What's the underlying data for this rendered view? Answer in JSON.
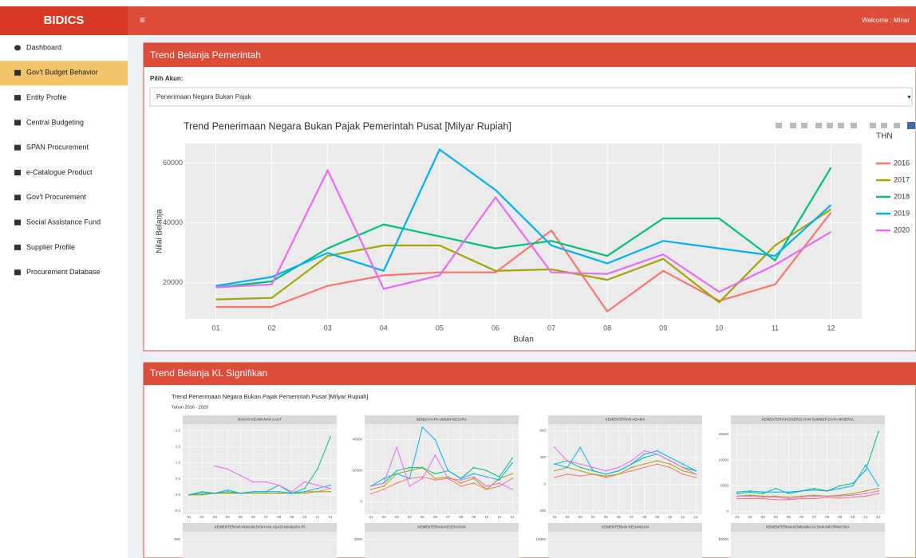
{
  "header": {
    "brand": "BIDICS",
    "welcome": "Welcome : Minar"
  },
  "sidebar": [
    "Dashboard",
    "Gov't Budget Behavior",
    "Entity Profile",
    "Central Budgeting",
    "SPAN Procurement",
    "e-Catalogue Product",
    "Gov't Procurement",
    "Social Assistance Fund",
    "Supplier Profile",
    "Procurement Database"
  ],
  "sidebar_active": 1,
  "panel1": {
    "title": "Trend Belanja Pemerintah",
    "select_label": "Pilih Akun:",
    "select_value": "Penerimaan Negara Bukan Pajak"
  },
  "chart_data": {
    "type": "line",
    "title": "Trend  Penerimaan Negara Bukan Pajak Pemerintah Pusat [Milyar Rupiah]",
    "x_label": "Bulan",
    "y_label": "Nilai Belanja",
    "legend_title": "THN",
    "legend": "right",
    "grid": true,
    "categories": [
      "01",
      "02",
      "03",
      "04",
      "05",
      "06",
      "07",
      "08",
      "09",
      "10",
      "11",
      "12"
    ],
    "ylim": [
      8000,
      66500
    ],
    "yticks": [
      20000,
      40000,
      60000
    ],
    "series": [
      {
        "name": "2016",
        "color": "#f8766d",
        "values": [
          12000,
          12000,
          19000,
          22500,
          23500,
          23500,
          37500,
          10500,
          24000,
          14000,
          19500,
          43500
        ]
      },
      {
        "name": "2017",
        "color": "#a3a500",
        "values": [
          14500,
          15000,
          29000,
          32500,
          32500,
          24000,
          24500,
          21000,
          28000,
          13500,
          32500,
          44500
        ]
      },
      {
        "name": "2018",
        "color": "#00bf7d",
        "values": [
          18500,
          20500,
          31500,
          39500,
          35500,
          31500,
          34000,
          29000,
          41500,
          41500,
          27500,
          58500
        ]
      },
      {
        "name": "2019",
        "color": "#00b0f6",
        "values": [
          19000,
          22000,
          30000,
          24000,
          64500,
          51000,
          32500,
          26500,
          34000,
          31500,
          29000,
          46000
        ]
      },
      {
        "name": "2020",
        "color": "#e76bf3",
        "values": [
          18500,
          19500,
          57500,
          18000,
          22500,
          48500,
          23500,
          23000,
          29500,
          17000,
          26000,
          37000
        ]
      }
    ]
  },
  "panel2": {
    "title": "Trend Belanja KL Signifikan",
    "chart_title": "Trend  Penerimaan Negara Bukan Pajak Pemerintah Pusat [Milyar Rupiah]",
    "subtitle": "Tahun 2016 - 2020"
  },
  "facet_categories": [
    "01",
    "02",
    "03",
    "04",
    "05",
    "06",
    "07",
    "08",
    "09",
    "10",
    "11",
    "12"
  ],
  "facets": [
    {
      "title": "BADAN KEAMANAN LAUT",
      "ylim": [
        -0.6,
        2.2
      ],
      "yticks": [
        {
          "value": 2,
          "label": "2.0"
        },
        1.5,
        {
          "value": 1,
          "label": "1.0"
        },
        0.5,
        {
          "value": 0,
          "label": "0.0"
        },
        -0.5
      ],
      "series": [
        {
          "values": [
            0,
            0,
            0.05,
            0.05,
            0.05,
            0.05,
            0.05,
            0.05,
            0.05,
            0.1,
            0.1,
            0.2
          ]
        },
        {
          "values": [
            0,
            0,
            0.05,
            0.05,
            0.05,
            0.05,
            0.05,
            0.05,
            0.05,
            0.05,
            0.1,
            0.1
          ]
        },
        {
          "values": [
            0,
            0.1,
            0.05,
            0.1,
            0.05,
            0.1,
            0.1,
            0.3,
            0.05,
            0.2,
            0.8,
            1.8
          ]
        },
        {
          "values": [
            0,
            0.05,
            0.05,
            0.15,
            0.05,
            0.1,
            0.1,
            0.1,
            0.05,
            0.1,
            0.2,
            0.3
          ]
        },
        {
          "values": [
            null,
            null,
            0.9,
            0.8,
            0.6,
            0.4,
            0.4,
            0.3,
            0.1,
            0.4,
            0.3,
            0.2
          ]
        }
      ]
    },
    {
      "title": "BENDAHARA UMUM NEGARA",
      "ylim": [
        -8000,
        50000
      ],
      "yticks": [
        0,
        20000,
        40000
      ],
      "series": [
        {
          "values": [
            5000,
            8000,
            12000,
            15000,
            16000,
            14000,
            15000,
            10000,
            12000,
            8000,
            10000,
            15000
          ]
        },
        {
          "values": [
            8000,
            10000,
            18000,
            20000,
            22000,
            15000,
            16000,
            12000,
            15000,
            8000,
            15000,
            18000
          ]
        },
        {
          "values": [
            10000,
            12000,
            20000,
            22000,
            22000,
            18000,
            20000,
            15000,
            22000,
            20000,
            16000,
            28000
          ]
        },
        {
          "values": [
            10000,
            15000,
            18000,
            15000,
            48000,
            40000,
            20000,
            15000,
            18000,
            16000,
            14000,
            25000
          ]
        },
        {
          "values": [
            10000,
            12000,
            35000,
            10000,
            15000,
            30000,
            15000,
            14000,
            16000,
            10000,
            12000,
            8000
          ]
        }
      ]
    },
    {
      "title": "KEMENTERIAN AGAMA",
      "ylim": [
        -450,
        900
      ],
      "yticks": [
        -400,
        0,
        400,
        800
      ],
      "series": [
        {
          "values": [
            100,
            150,
            120,
            150,
            100,
            150,
            200,
            250,
            300,
            250,
            150,
            100
          ]
        },
        {
          "values": [
            200,
            250,
            200,
            150,
            120,
            150,
            250,
            300,
            350,
            300,
            200,
            150
          ]
        },
        {
          "values": [
            300,
            350,
            250,
            200,
            150,
            200,
            300,
            400,
            450,
            350,
            250,
            200
          ]
        },
        {
          "values": [
            300,
            250,
            550,
            200,
            150,
            200,
            300,
            450,
            500,
            400,
            300,
            200
          ]
        },
        {
          "values": [
            550,
            350,
            300,
            250,
            200,
            250,
            350,
            500,
            450,
            350,
            250,
            150
          ]
        }
      ]
    },
    {
      "title": "KEMENTERIAN ENERGI DAN SUMBER DAYA MINERAL",
      "ylim": [
        -500,
        17000
      ],
      "yticks": [
        0,
        5000,
        10000,
        15000
      ],
      "series": [
        {
          "values": [
            2500,
            2500,
            2500,
            2300,
            2300,
            2500,
            2500,
            2800,
            2600,
            2800,
            3000,
            3500
          ]
        },
        {
          "values": [
            3000,
            3200,
            3000,
            3000,
            2800,
            3000,
            3200,
            3000,
            3200,
            3500,
            4000,
            4500
          ]
        },
        {
          "values": [
            3500,
            3800,
            3500,
            4500,
            3500,
            4000,
            4500,
            4000,
            5000,
            5500,
            8000,
            15500
          ]
        },
        {
          "values": [
            3800,
            4000,
            3800,
            3800,
            3800,
            4000,
            4200,
            4000,
            4500,
            5000,
            9000,
            5000
          ]
        },
        {
          "values": [
            3000,
            3000,
            2800,
            2800,
            2500,
            2800,
            3000,
            3000,
            3000,
            3200,
            3500,
            4000
          ]
        }
      ]
    }
  ],
  "facets_row2": [
    {
      "title": "KEMENTERIAN HUKUM DAN HAK ASASI MANUSIA RI",
      "ytick": 500
    },
    {
      "title": "KEMENTERIAN KESEHATAN",
      "ytick": 2000
    },
    {
      "title": "KEMENTERIAN KEUANGAN",
      "ytick": 10000
    },
    {
      "title": "KEMENTERIAN KOMUNIKASI DAN INFORMATIKA",
      "ytick": 15000
    }
  ]
}
